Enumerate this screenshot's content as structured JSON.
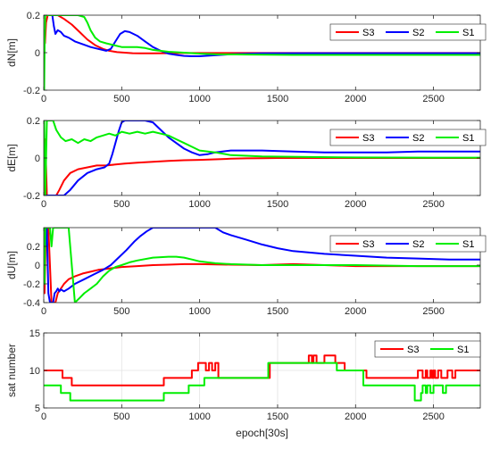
{
  "chart_data": [
    {
      "type": "line",
      "ylabel": "dN[m]",
      "xlabel": "",
      "xlim": [
        0,
        2800
      ],
      "ylim": [
        -0.2,
        0.2
      ],
      "xticks": [
        0,
        500,
        1000,
        1500,
        2000,
        2500
      ],
      "yticks": [
        -0.2,
        0,
        0.2
      ],
      "ytick_labels": [
        "-0.2",
        "0",
        "0.2"
      ],
      "grid": false,
      "legend": "top-right",
      "series": [
        {
          "name": "S3",
          "color": "#ff0000",
          "x": [
            0,
            2,
            4,
            8,
            15,
            25,
            40,
            60,
            90,
            130,
            180,
            230,
            280,
            330,
            380,
            420,
            470,
            520,
            570,
            620,
            700,
            800,
            900,
            1000,
            1200,
            1500,
            2000,
            2500,
            2800
          ],
          "y": [
            0.0,
            -0.15,
            0.12,
            0.05,
            0.16,
            0.2,
            0.2,
            0.2,
            0.2,
            0.18,
            0.15,
            0.11,
            0.07,
            0.04,
            0.02,
            0.01,
            0.003,
            0.0,
            -0.003,
            -0.004,
            -0.004,
            -0.003,
            -0.002,
            -0.002,
            -0.002,
            -0.002,
            -0.002,
            -0.002,
            -0.002
          ]
        },
        {
          "name": "S2",
          "color": "#0000ff",
          "x": [
            0,
            10,
            20,
            40,
            55,
            65,
            75,
            90,
            110,
            130,
            160,
            200,
            250,
            300,
            350,
            400,
            430,
            460,
            490,
            520,
            550,
            600,
            650,
            700,
            750,
            800,
            850,
            900,
            950,
            1000,
            1100,
            1200,
            1400,
            1700,
            2000,
            2400,
            2800
          ],
          "y": [
            0.2,
            0.2,
            0.2,
            0.2,
            0.2,
            0.14,
            0.1,
            0.12,
            0.11,
            0.09,
            0.08,
            0.06,
            0.045,
            0.03,
            0.02,
            0.01,
            0.02,
            0.06,
            0.1,
            0.115,
            0.11,
            0.09,
            0.06,
            0.03,
            0.01,
            -0.005,
            -0.012,
            -0.017,
            -0.019,
            -0.019,
            -0.014,
            -0.008,
            -0.004,
            -0.003,
            -0.003,
            -0.003,
            -0.003
          ]
        },
        {
          "name": "S1",
          "color": "#00ee00",
          "x": [
            0,
            3,
            6,
            10,
            20,
            40,
            60,
            100,
            140,
            180,
            220,
            260,
            280,
            300,
            330,
            360,
            400,
            450,
            500,
            550,
            600,
            650,
            700,
            800,
            900,
            1000,
            1100,
            1300,
            1600,
            2000,
            2500,
            2800
          ],
          "y": [
            -0.2,
            -0.2,
            0.05,
            0.2,
            0.2,
            0.2,
            0.2,
            0.2,
            0.2,
            0.2,
            0.2,
            0.19,
            0.16,
            0.12,
            0.08,
            0.06,
            0.05,
            0.04,
            0.03,
            0.03,
            0.03,
            0.025,
            0.015,
            0.005,
            0.0,
            -0.005,
            -0.008,
            -0.01,
            -0.012,
            -0.012,
            -0.012,
            -0.012
          ]
        }
      ]
    },
    {
      "type": "line",
      "ylabel": "dE[m]",
      "xlabel": "",
      "xlim": [
        0,
        2800
      ],
      "ylim": [
        -0.2,
        0.2
      ],
      "xticks": [
        0,
        500,
        1000,
        1500,
        2000,
        2500
      ],
      "yticks": [
        -0.2,
        0,
        0.2
      ],
      "ytick_labels": [
        "-0.2",
        "0",
        "0.2"
      ],
      "grid": false,
      "legend": "top-right",
      "series": [
        {
          "name": "S3",
          "color": "#ff0000",
          "x": [
            0,
            5,
            10,
            20,
            40,
            60,
            80,
            100,
            130,
            170,
            220,
            280,
            340,
            400,
            460,
            520,
            600,
            700,
            800,
            900,
            1000,
            1100,
            1200,
            1300,
            1400,
            1500,
            1700,
            2000,
            2500,
            2800
          ],
          "y": [
            -0.2,
            -0.2,
            0.1,
            -0.2,
            -0.2,
            -0.2,
            -0.2,
            -0.17,
            -0.12,
            -0.08,
            -0.06,
            -0.05,
            -0.04,
            -0.04,
            -0.035,
            -0.03,
            -0.025,
            -0.02,
            -0.015,
            -0.012,
            -0.01,
            -0.007,
            -0.004,
            -0.002,
            -0.001,
            0.0,
            0.0,
            0.0,
            0.0,
            0.0
          ]
        },
        {
          "name": "S2",
          "color": "#0000ff",
          "x": [
            0,
            20,
            40,
            60,
            80,
            100,
            130,
            170,
            220,
            280,
            340,
            390,
            420,
            440,
            460,
            480,
            500,
            520,
            560,
            600,
            650,
            700,
            750,
            800,
            850,
            900,
            950,
            1000,
            1050,
            1100,
            1200,
            1400,
            1600,
            1800,
            2000,
            2200,
            2400,
            2600,
            2800
          ],
          "y": [
            -0.2,
            -0.2,
            -0.2,
            -0.2,
            -0.2,
            -0.2,
            -0.2,
            -0.17,
            -0.12,
            -0.08,
            -0.06,
            -0.05,
            -0.03,
            0.02,
            0.08,
            0.14,
            0.19,
            0.2,
            0.2,
            0.2,
            0.2,
            0.19,
            0.15,
            0.11,
            0.08,
            0.05,
            0.03,
            0.015,
            0.02,
            0.03,
            0.04,
            0.04,
            0.035,
            0.03,
            0.03,
            0.03,
            0.035,
            0.035,
            0.035
          ]
        },
        {
          "name": "S1",
          "color": "#00ee00",
          "x": [
            0,
            3,
            10,
            20,
            40,
            50,
            60,
            80,
            110,
            140,
            180,
            220,
            260,
            300,
            340,
            380,
            420,
            460,
            500,
            550,
            600,
            650,
            700,
            750,
            800,
            850,
            900,
            950,
            1000,
            1100,
            1200,
            1400,
            1700,
            2000,
            2500,
            2800
          ],
          "y": [
            0.2,
            0.2,
            -0.2,
            0.2,
            0.2,
            0.2,
            0.2,
            0.15,
            0.11,
            0.09,
            0.1,
            0.08,
            0.1,
            0.09,
            0.11,
            0.12,
            0.13,
            0.12,
            0.14,
            0.13,
            0.14,
            0.13,
            0.14,
            0.13,
            0.12,
            0.1,
            0.08,
            0.06,
            0.04,
            0.03,
            0.015,
            0.008,
            0.005,
            0.003,
            0.002,
            0.002
          ]
        }
      ]
    },
    {
      "type": "line",
      "ylabel": "dU[m]",
      "xlabel": "",
      "xlim": [
        0,
        2800
      ],
      "ylim": [
        -0.4,
        0.4
      ],
      "xticks": [
        0,
        500,
        1000,
        1500,
        2000,
        2500
      ],
      "yticks": [
        -0.4,
        -0.2,
        0,
        0.2
      ],
      "ytick_labels": [
        "-0.4",
        "-0.2",
        "0",
        "0.2"
      ],
      "grid": false,
      "legend": "top-right",
      "series": [
        {
          "name": "S3",
          "color": "#ff0000",
          "x": [
            0,
            5,
            15,
            30,
            50,
            60,
            75,
            90,
            110,
            130,
            160,
            200,
            250,
            300,
            350,
            400,
            450,
            500,
            600,
            700,
            800,
            900,
            1000,
            1200,
            1400,
            1600,
            1800,
            2000,
            2400,
            2800
          ],
          "y": [
            0.4,
            -0.3,
            0.4,
            0.4,
            -0.4,
            -0.4,
            -0.4,
            -0.3,
            -0.25,
            -0.2,
            -0.15,
            -0.12,
            -0.09,
            -0.07,
            -0.05,
            -0.04,
            -0.03,
            -0.02,
            -0.01,
            0.0,
            0.005,
            0.01,
            0.01,
            0.005,
            0.0,
            0.01,
            0.0,
            -0.01,
            -0.01,
            -0.01
          ]
        },
        {
          "name": "S2",
          "color": "#0000ff",
          "x": [
            0,
            10,
            20,
            30,
            40,
            50,
            60,
            70,
            80,
            90,
            100,
            110,
            130,
            160,
            200,
            260,
            320,
            380,
            430,
            480,
            530,
            580,
            620,
            660,
            700,
            730,
            780,
            850,
            950,
            1050,
            1100,
            1150,
            1200,
            1300,
            1400,
            1500,
            1600,
            1800,
            2000,
            2200,
            2400,
            2600,
            2800
          ],
          "y": [
            0.4,
            0.2,
            0.4,
            -0.3,
            -0.4,
            -0.4,
            -0.4,
            -0.3,
            -0.28,
            -0.25,
            -0.28,
            -0.26,
            -0.28,
            -0.25,
            -0.2,
            -0.15,
            -0.1,
            -0.05,
            0.0,
            0.08,
            0.16,
            0.25,
            0.31,
            0.36,
            0.4,
            0.4,
            0.4,
            0.4,
            0.4,
            0.4,
            0.4,
            0.35,
            0.32,
            0.27,
            0.22,
            0.18,
            0.15,
            0.12,
            0.1,
            0.08,
            0.07,
            0.06,
            0.06
          ]
        },
        {
          "name": "S1",
          "color": "#00ee00",
          "x": [
            0,
            5,
            10,
            20,
            30,
            40,
            50,
            60,
            80,
            120,
            160,
            200,
            230,
            260,
            300,
            340,
            380,
            420,
            460,
            500,
            550,
            600,
            700,
            800,
            850,
            900,
            950,
            1000,
            1050,
            1100,
            1200,
            1400,
            1600,
            2000,
            2400,
            2800
          ],
          "y": [
            0.4,
            -0.2,
            0.4,
            0.4,
            0.4,
            0.4,
            0.2,
            0.4,
            0.4,
            0.4,
            0.4,
            -0.4,
            -0.35,
            -0.3,
            -0.25,
            -0.2,
            -0.12,
            -0.06,
            -0.02,
            0.0,
            0.03,
            0.05,
            0.08,
            0.09,
            0.09,
            0.08,
            0.06,
            0.04,
            0.03,
            0.02,
            0.01,
            0.0,
            0.0,
            0.0,
            -0.01,
            -0.01
          ]
        }
      ]
    },
    {
      "type": "line",
      "ylabel": "sat number",
      "xlabel": "epoch[30s]",
      "xlim": [
        0,
        2800
      ],
      "ylim": [
        5,
        15
      ],
      "xticks": [
        0,
        500,
        1000,
        1500,
        2000,
        2500
      ],
      "yticks": [
        5,
        10,
        15
      ],
      "ytick_labels": [
        "5",
        "10",
        "15"
      ],
      "grid": true,
      "legend": "top-right",
      "series": [
        {
          "name": "S3",
          "color": "#ff0000",
          "step": true,
          "x": [
            0,
            120,
            180,
            400,
            770,
            950,
            990,
            1040,
            1060,
            1080,
            1100,
            1120,
            1450,
            1700,
            1720,
            1730,
            1750,
            1780,
            1800,
            1850,
            1870,
            1930,
            2070,
            2400,
            2430,
            2450,
            2460,
            2480,
            2490,
            2500,
            2510,
            2530,
            2550,
            2590,
            2620,
            2640,
            2660,
            2800
          ],
          "y": [
            10,
            9,
            8,
            8,
            9,
            10,
            11,
            10,
            11,
            10,
            11,
            9,
            11,
            12,
            11,
            12,
            11,
            11,
            12,
            12,
            11,
            10,
            9,
            10,
            9,
            10,
            9,
            10,
            9,
            10,
            9,
            10,
            9,
            10,
            9,
            10,
            10,
            10
          ]
        },
        {
          "name": "S1",
          "color": "#00ee00",
          "step": true,
          "x": [
            0,
            110,
            170,
            400,
            770,
            930,
            1030,
            1440,
            1880,
            2050,
            2380,
            2420,
            2430,
            2450,
            2460,
            2480,
            2500,
            2520,
            2560,
            2580,
            2600,
            2800
          ],
          "y": [
            8,
            7,
            6,
            6,
            7,
            8,
            9,
            11,
            10,
            8,
            6,
            7,
            8,
            7,
            8,
            7,
            8,
            8,
            7,
            8,
            8,
            8
          ]
        }
      ]
    }
  ]
}
